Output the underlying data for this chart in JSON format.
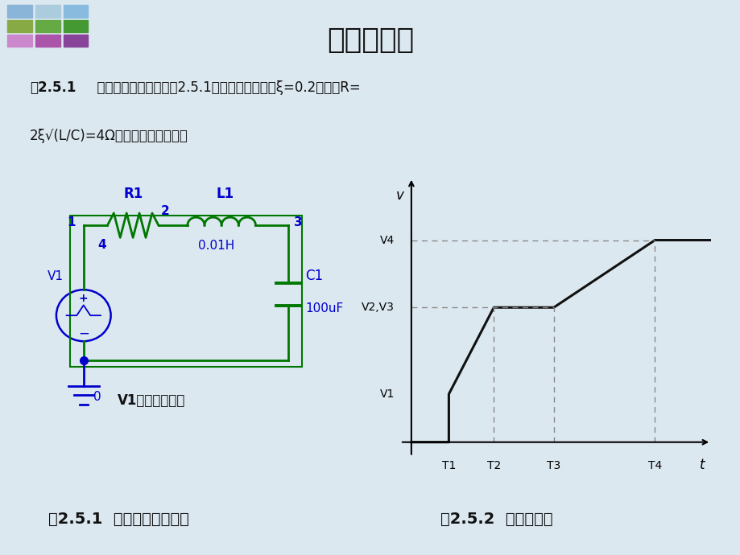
{
  "title": "阻尼振荡器",
  "bg_color": "#dce8f0",
  "header_bg": "#c5d9ea",
  "title_color": "#111111",
  "text_color": "#111111",
  "blue_color": "#0000cc",
  "green_color": "#007700",
  "graph_color": "#111111",
  "dash_color": "#888888",
  "example_bold": "例2.5.1",
  "example_rest": "  一个阻尼振荡电路如图2.5.1所示，其衰减系数ξ=0.2，电阻R=",
  "example_line2": "2ξ√(L/C)=4Ω，计算其振荡波形。",
  "circuit_label": "图2.5.1  阻尼振荡器电路图",
  "waveform_label": "图2.5.2  分段线性源",
  "v1_label": "V1：分段线性源",
  "waveform": {
    "t1": 1.0,
    "t2": 2.2,
    "t3": 3.8,
    "t4": 6.5,
    "v1": 1.0,
    "v23": 2.8,
    "v4": 4.2,
    "t_max": 8.0,
    "v_max": 5.5
  },
  "deco_colors": [
    [
      "#8ab4d8",
      "#aaccdd",
      "#88bbdd"
    ],
    [
      "#88aa44",
      "#66aa44",
      "#449933"
    ],
    [
      "#cc88cc",
      "#aa55aa",
      "#884499"
    ]
  ]
}
